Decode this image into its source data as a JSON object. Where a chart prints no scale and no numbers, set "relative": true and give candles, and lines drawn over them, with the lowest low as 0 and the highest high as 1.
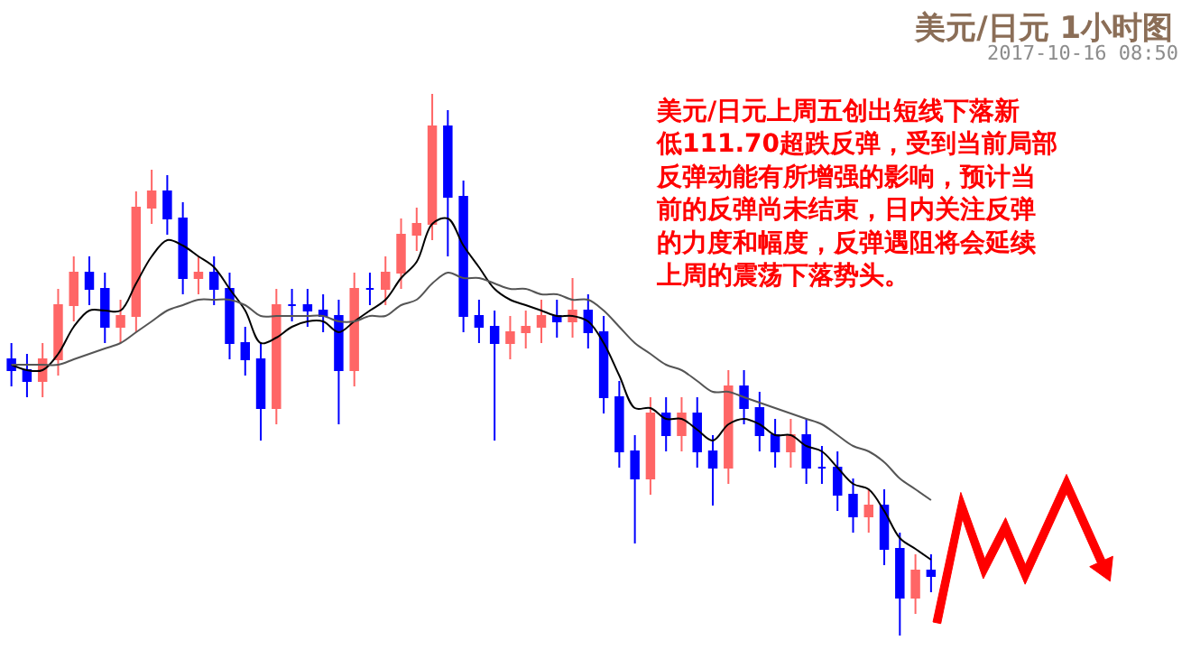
{
  "chart_data": {
    "type": "candlestick",
    "title": "美元/日元 1小时图",
    "subtitle": "2017-10-16 08:50",
    "annotations": [
      "美元/日元上周五创出短线下落新低111.70超跌反弹，受到当前局部反弹动能有所增强的影响，预计当前的反弹尚未结束，日内关注反弹的力度和幅度，反弹遇阻将会延续上周的震荡下落势头。"
    ],
    "relative": true,
    "tick_labels": false,
    "categories": [
      null,
      null,
      null,
      null,
      null,
      null,
      null,
      null,
      null,
      null,
      null,
      null,
      null,
      null,
      null,
      null,
      null,
      null,
      null,
      null,
      null,
      null,
      null,
      null,
      null,
      null,
      null,
      null,
      null,
      null,
      null,
      null,
      null,
      null,
      null,
      null,
      null,
      null,
      null,
      null,
      null,
      null,
      null,
      null,
      null,
      null,
      null,
      null,
      null,
      null,
      null,
      null,
      null,
      null,
      null,
      null,
      null,
      null,
      null,
      null
    ],
    "ohlc": [
      [
        0.51,
        0.54,
        0.46,
        0.49
      ],
      [
        0.49,
        0.52,
        0.44,
        0.47
      ],
      [
        0.47,
        0.54,
        0.44,
        0.51
      ],
      [
        0.51,
        0.64,
        0.48,
        0.61
      ],
      [
        0.61,
        0.7,
        0.58,
        0.67
      ],
      [
        0.67,
        0.7,
        0.61,
        0.64
      ],
      [
        0.64,
        0.67,
        0.54,
        0.57
      ],
      [
        0.57,
        0.62,
        0.54,
        0.59
      ],
      [
        0.59,
        0.82,
        0.56,
        0.79
      ],
      [
        0.79,
        0.86,
        0.76,
        0.82
      ],
      [
        0.82,
        0.85,
        0.74,
        0.77
      ],
      [
        0.77,
        0.8,
        0.63,
        0.66
      ],
      [
        0.66,
        0.7,
        0.63,
        0.67
      ],
      [
        0.67,
        0.7,
        0.61,
        0.64
      ],
      [
        0.64,
        0.67,
        0.51,
        0.54
      ],
      [
        0.54,
        0.57,
        0.48,
        0.51
      ],
      [
        0.51,
        0.54,
        0.36,
        0.42
      ],
      [
        0.42,
        0.64,
        0.39,
        0.61
      ],
      [
        0.61,
        0.64,
        0.58,
        0.61
      ],
      [
        0.61,
        0.64,
        0.57,
        0.6
      ],
      [
        0.6,
        0.63,
        0.56,
        0.59
      ],
      [
        0.59,
        0.62,
        0.39,
        0.49
      ],
      [
        0.49,
        0.67,
        0.46,
        0.64
      ],
      [
        0.64,
        0.67,
        0.61,
        0.64
      ],
      [
        0.64,
        0.7,
        0.61,
        0.67
      ],
      [
        0.67,
        0.77,
        0.64,
        0.74
      ],
      [
        0.74,
        0.79,
        0.71,
        0.76
      ],
      [
        0.76,
        1.0,
        0.73,
        0.94
      ],
      [
        0.94,
        0.97,
        0.7,
        0.81
      ],
      [
        0.81,
        0.84,
        0.56,
        0.59
      ],
      [
        0.59,
        0.62,
        0.54,
        0.57
      ],
      [
        0.57,
        0.6,
        0.36,
        0.54
      ],
      [
        0.54,
        0.59,
        0.51,
        0.56
      ],
      [
        0.56,
        0.6,
        0.53,
        0.57
      ],
      [
        0.57,
        0.62,
        0.54,
        0.59
      ],
      [
        0.59,
        0.62,
        0.55,
        0.58
      ],
      [
        0.58,
        0.66,
        0.55,
        0.6
      ],
      [
        0.6,
        0.63,
        0.53,
        0.56
      ],
      [
        0.56,
        0.59,
        0.41,
        0.44
      ],
      [
        0.44,
        0.47,
        0.31,
        0.34
      ],
      [
        0.34,
        0.37,
        0.17,
        0.29
      ],
      [
        0.29,
        0.44,
        0.26,
        0.41
      ],
      [
        0.41,
        0.44,
        0.34,
        0.37
      ],
      [
        0.37,
        0.44,
        0.34,
        0.41
      ],
      [
        0.41,
        0.44,
        0.31,
        0.34
      ],
      [
        0.34,
        0.37,
        0.24,
        0.31
      ],
      [
        0.31,
        0.49,
        0.28,
        0.46
      ],
      [
        0.46,
        0.49,
        0.39,
        0.42
      ],
      [
        0.42,
        0.45,
        0.34,
        0.37
      ],
      [
        0.37,
        0.4,
        0.31,
        0.34
      ],
      [
        0.34,
        0.4,
        0.31,
        0.37
      ],
      [
        0.37,
        0.4,
        0.28,
        0.31
      ],
      [
        0.31,
        0.35,
        0.28,
        0.31
      ],
      [
        0.31,
        0.34,
        0.23,
        0.26
      ],
      [
        0.26,
        0.29,
        0.19,
        0.22
      ],
      [
        0.22,
        0.27,
        0.19,
        0.24
      ],
      [
        0.24,
        0.27,
        0.13,
        0.16
      ],
      [
        0.16,
        0.19,
        0.0,
        0.07
      ],
      [
        0.07,
        0.15,
        0.04,
        0.12
      ],
      [
        0.12,
        0.15,
        0.08,
        0.11
      ]
    ],
    "colors": [
      "#0000ff",
      "#0000ff",
      "#ff6666",
      "#ff6666",
      "#ff6666",
      "#0000ff",
      "#0000ff",
      "#ff6666",
      "#ff6666",
      "#ff6666",
      "#0000ff",
      "#0000ff",
      "#ff6666",
      "#0000ff",
      "#0000ff",
      "#0000ff",
      "#0000ff",
      "#ff6666",
      "#0000ff",
      "#0000ff",
      "#0000ff",
      "#0000ff",
      "#ff6666",
      "#0000ff",
      "#ff6666",
      "#ff6666",
      "#ff6666",
      "#ff6666",
      "#0000ff",
      "#0000ff",
      "#0000ff",
      "#0000ff",
      "#ff6666",
      "#ff6666",
      "#ff6666",
      "#0000ff",
      "#ff6666",
      "#0000ff",
      "#0000ff",
      "#0000ff",
      "#0000ff",
      "#ff6666",
      "#0000ff",
      "#ff6666",
      "#0000ff",
      "#0000ff",
      "#ff6666",
      "#0000ff",
      "#0000ff",
      "#0000ff",
      "#ff6666",
      "#0000ff",
      "#0000ff",
      "#0000ff",
      "#0000ff",
      "#ff6666",
      "#0000ff",
      "#0000ff",
      "#ff6666",
      "#0000ff"
    ],
    "series": [
      {
        "type": "line",
        "color": "#000000",
        "values": [
          0.5,
          0.49,
          0.49,
          0.52,
          0.57,
          0.6,
          0.6,
          0.6,
          0.65,
          0.7,
          0.73,
          0.72,
          0.7,
          0.68,
          0.64,
          0.6,
          0.54,
          0.55,
          0.57,
          0.58,
          0.58,
          0.56,
          0.58,
          0.6,
          0.62,
          0.66,
          0.69,
          0.76,
          0.77,
          0.72,
          0.68,
          0.64,
          0.62,
          0.61,
          0.6,
          0.59,
          0.59,
          0.58,
          0.54,
          0.48,
          0.42,
          0.42,
          0.4,
          0.4,
          0.38,
          0.36,
          0.39,
          0.4,
          0.39,
          0.37,
          0.37,
          0.35,
          0.34,
          0.31,
          0.28,
          0.27,
          0.23,
          0.18,
          0.16,
          0.14
        ]
      },
      {
        "type": "line",
        "color": "#555555",
        "values": [
          0.5,
          0.5,
          0.5,
          0.5,
          0.51,
          0.52,
          0.53,
          0.54,
          0.56,
          0.58,
          0.6,
          0.61,
          0.62,
          0.62,
          0.62,
          0.61,
          0.59,
          0.59,
          0.59,
          0.59,
          0.59,
          0.58,
          0.58,
          0.59,
          0.59,
          0.61,
          0.62,
          0.65,
          0.67,
          0.66,
          0.66,
          0.65,
          0.64,
          0.64,
          0.63,
          0.63,
          0.62,
          0.62,
          0.6,
          0.57,
          0.54,
          0.52,
          0.5,
          0.49,
          0.47,
          0.45,
          0.45,
          0.44,
          0.43,
          0.42,
          0.41,
          0.4,
          0.39,
          0.37,
          0.35,
          0.34,
          0.32,
          0.29,
          0.27,
          0.25
        ]
      }
    ]
  }
}
